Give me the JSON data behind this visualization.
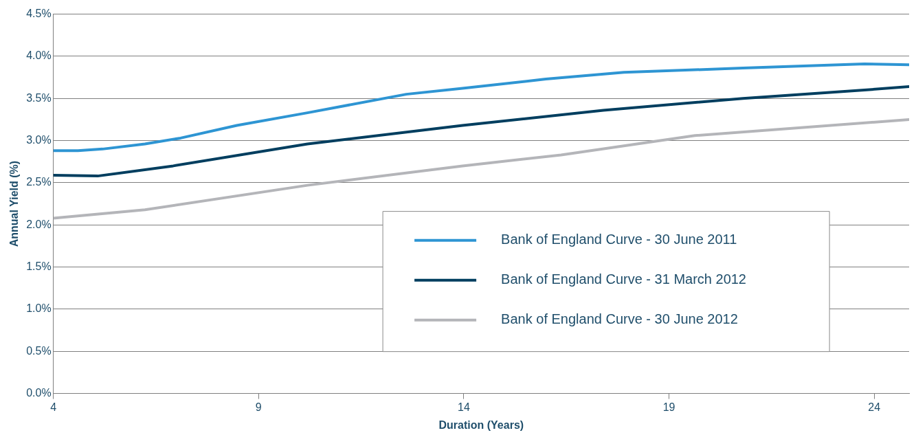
{
  "chart_data": {
    "type": "line",
    "xlabel": "Duration (Years)",
    "ylabel": "Annual Yield (%)",
    "xlim": [
      4,
      24.85
    ],
    "xticks": [
      4,
      9,
      14,
      19,
      24
    ],
    "ylim": [
      0,
      4.5
    ],
    "yticks": [
      {
        "value": 0,
        "label": "0.0%"
      },
      {
        "value": 0.5,
        "label": "0.5%"
      },
      {
        "value": 1,
        "label": "1.0%"
      },
      {
        "value": 1.5,
        "label": "1.5%"
      },
      {
        "value": 2,
        "label": "2.0%"
      },
      {
        "value": 2.5,
        "label": "2.5%"
      },
      {
        "value": 3,
        "label": "3.0%"
      },
      {
        "value": 3.5,
        "label": "3.5%"
      },
      {
        "value": 4,
        "label": "4.0%"
      },
      {
        "value": 4.5,
        "label": "4.5%"
      }
    ],
    "grid": "y",
    "legend": "bottom right",
    "marker": "none",
    "line_style": "solid",
    "series": [
      {
        "name": "Bank of England Curve - 30 June 2011",
        "color": "#2e95d3",
        "x": [
          4,
          4.6,
          5.2,
          6.23,
          7.1,
          8.47,
          10.19,
          12.6,
          13.97,
          16.0,
          17.9,
          20.8,
          23.76,
          24.85
        ],
        "values": [
          2.88,
          2.88,
          2.9,
          2.96,
          3.03,
          3.18,
          3.33,
          3.55,
          3.62,
          3.73,
          3.81,
          3.86,
          3.91,
          3.9
        ]
      },
      {
        "name": "Bank of England Curve - 31 March 2012",
        "color": "#003e5f",
        "x": [
          4,
          5.08,
          6.92,
          10.19,
          13.97,
          17.4,
          20.8,
          23.76,
          24.85
        ],
        "values": [
          2.59,
          2.58,
          2.7,
          2.96,
          3.18,
          3.36,
          3.5,
          3.6,
          3.64
        ]
      },
      {
        "name": "Bank of England Curve - 30 June 2012",
        "color": "#b4b5b9",
        "x": [
          4,
          6.23,
          10.19,
          13.97,
          16.37,
          19.63,
          24.85
        ],
        "values": [
          2.08,
          2.18,
          2.47,
          2.7,
          2.83,
          3.06,
          3.25
        ]
      }
    ]
  }
}
